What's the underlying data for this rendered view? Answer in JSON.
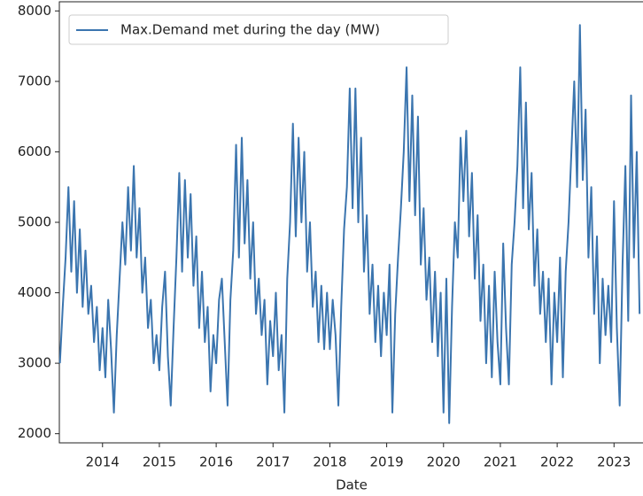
{
  "chart_data": {
    "type": "line",
    "x_label": "Date",
    "x": [
      2013.25,
      2013.3,
      2013.35,
      2013.4,
      2013.45,
      2013.5,
      2013.55,
      2013.6,
      2013.65,
      2013.7,
      2013.75,
      2013.8,
      2013.85,
      2013.9,
      2013.95,
      2014,
      2014.05,
      2014.1,
      2014.15,
      2014.2,
      2014.25,
      2014.3,
      2014.35,
      2014.4,
      2014.45,
      2014.5,
      2014.55,
      2014.6,
      2014.65,
      2014.7,
      2014.75,
      2014.8,
      2014.85,
      2014.9,
      2014.95,
      2015,
      2015.05,
      2015.1,
      2015.15,
      2015.2,
      2015.25,
      2015.3,
      2015.35,
      2015.4,
      2015.45,
      2015.5,
      2015.55,
      2015.6,
      2015.65,
      2015.7,
      2015.75,
      2015.8,
      2015.85,
      2015.9,
      2015.95,
      2016,
      2016.05,
      2016.1,
      2016.15,
      2016.2,
      2016.25,
      2016.3,
      2016.35,
      2016.4,
      2016.45,
      2016.5,
      2016.55,
      2016.6,
      2016.65,
      2016.7,
      2016.75,
      2016.8,
      2016.85,
      2016.9,
      2016.95,
      2017,
      2017.05,
      2017.1,
      2017.15,
      2017.2,
      2017.25,
      2017.3,
      2017.35,
      2017.4,
      2017.45,
      2017.5,
      2017.55,
      2017.6,
      2017.65,
      2017.7,
      2017.75,
      2017.8,
      2017.85,
      2017.9,
      2017.95,
      2018,
      2018.05,
      2018.1,
      2018.15,
      2018.2,
      2018.25,
      2018.3,
      2018.35,
      2018.4,
      2018.45,
      2018.5,
      2018.55,
      2018.6,
      2018.65,
      2018.7,
      2018.75,
      2018.8,
      2018.85,
      2018.9,
      2018.95,
      2019,
      2019.05,
      2019.1,
      2019.15,
      2019.2,
      2019.25,
      2019.3,
      2019.35,
      2019.4,
      2019.45,
      2019.5,
      2019.55,
      2019.6,
      2019.65,
      2019.7,
      2019.75,
      2019.8,
      2019.85,
      2019.9,
      2019.95,
      2020,
      2020.05,
      2020.1,
      2020.15,
      2020.2,
      2020.25,
      2020.3,
      2020.35,
      2020.4,
      2020.45,
      2020.5,
      2020.55,
      2020.6,
      2020.65,
      2020.7,
      2020.75,
      2020.8,
      2020.85,
      2020.9,
      2020.95,
      2021,
      2021.05,
      2021.1,
      2021.15,
      2021.2,
      2021.25,
      2021.3,
      2021.35,
      2021.4,
      2021.45,
      2021.5,
      2021.55,
      2021.6,
      2021.65,
      2021.7,
      2021.75,
      2021.8,
      2021.85,
      2021.9,
      2021.95,
      2022,
      2022.05,
      2022.1,
      2022.15,
      2022.2,
      2022.25,
      2022.3,
      2022.35,
      2022.4,
      2022.45,
      2022.5,
      2022.55,
      2022.6,
      2022.65,
      2022.7,
      2022.75,
      2022.8,
      2022.85,
      2022.9,
      2022.95,
      2023,
      2023.05,
      2023.1,
      2023.15,
      2023.2,
      2023.25,
      2023.3,
      2023.35,
      2023.4,
      2023.45
    ],
    "series": [
      {
        "name": "Max.Demand met during the day (MW)",
        "color": "#3b75af",
        "values": [
          3000,
          3800,
          4500,
          5500,
          4300,
          5300,
          4000,
          4900,
          3800,
          4600,
          3700,
          4100,
          3300,
          3800,
          2900,
          3500,
          2800,
          3900,
          3200,
          2300,
          3400,
          4200,
          5000,
          4400,
          5500,
          4600,
          5800,
          4500,
          5200,
          4000,
          4500,
          3500,
          3900,
          3000,
          3400,
          2900,
          3800,
          4300,
          3100,
          2400,
          3500,
          4500,
          5700,
          4300,
          5600,
          4500,
          5400,
          4100,
          4800,
          3500,
          4300,
          3300,
          3800,
          2600,
          3400,
          3000,
          3900,
          4200,
          3300,
          2400,
          3900,
          4600,
          6100,
          4500,
          6200,
          4700,
          5600,
          4200,
          5000,
          3700,
          4200,
          3400,
          3900,
          2700,
          3600,
          3100,
          4000,
          2900,
          3400,
          2300,
          4200,
          5000,
          6400,
          4800,
          6200,
          5000,
          6000,
          4300,
          5000,
          3800,
          4300,
          3300,
          4100,
          3200,
          4000,
          3200,
          3900,
          3400,
          2400,
          3800,
          4900,
          5500,
          6900,
          5200,
          6900,
          5000,
          6200,
          4300,
          5100,
          3700,
          4400,
          3300,
          4100,
          3100,
          4000,
          3400,
          4400,
          2300,
          3700,
          4500,
          5200,
          6000,
          7200,
          5300,
          6800,
          5100,
          6500,
          4400,
          5200,
          3900,
          4500,
          3300,
          4300,
          3100,
          4000,
          2300,
          4200,
          2150,
          3800,
          5000,
          4500,
          6200,
          5300,
          6300,
          4800,
          5700,
          4200,
          5100,
          3600,
          4400,
          3000,
          4100,
          2800,
          4300,
          3300,
          2700,
          4700,
          3500,
          2700,
          4400,
          5000,
          5800,
          7200,
          5200,
          6700,
          4900,
          5700,
          4100,
          4900,
          3700,
          4300,
          3300,
          4200,
          2700,
          4000,
          3300,
          4500,
          2800,
          4300,
          5000,
          6000,
          7000,
          5500,
          7800,
          5600,
          6600,
          4500,
          5500,
          3700,
          4800,
          3000,
          4200,
          3400,
          4100,
          3300,
          5300,
          3500,
          2400,
          4400,
          5800,
          3600,
          6800,
          4500,
          6000,
          3700
        ]
      }
    ],
    "xlim": [
      2013.24,
      2023.51
    ],
    "xticks": [
      2014,
      2015,
      2016,
      2017,
      2018,
      2019,
      2020,
      2021,
      2022,
      2023
    ],
    "ylim": [
      1870,
      8130
    ],
    "yticks": [
      2000,
      3000,
      4000,
      5000,
      6000,
      7000,
      8000
    ],
    "legend": "upper left"
  }
}
